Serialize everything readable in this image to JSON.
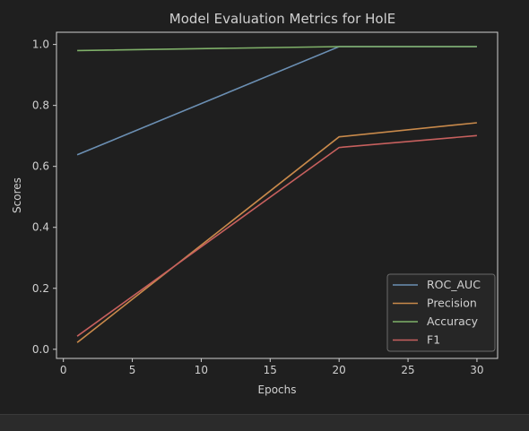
{
  "colors": {
    "background": "#1f1f1f",
    "axes": "#cfcfcf",
    "text": "#d0d0d0"
  },
  "chart_data": {
    "type": "line",
    "title": "Model Evaluation Metrics for HolE",
    "xlabel": "Epochs",
    "ylabel": "Scores",
    "x": [
      1,
      20,
      30
    ],
    "xlim": [
      -0.5,
      31.5
    ],
    "ylim": [
      -0.03,
      1.04
    ],
    "xticks": [
      0,
      5,
      10,
      15,
      20,
      25,
      30
    ],
    "xtick_labels": [
      "0",
      "5",
      "10",
      "15",
      "20",
      "25",
      "30"
    ],
    "yticks": [
      0.0,
      0.2,
      0.4,
      0.6,
      0.8,
      1.0
    ],
    "ytick_labels": [
      "0.0",
      "0.2",
      "0.4",
      "0.6",
      "0.8",
      "1.0"
    ],
    "grid": false,
    "legend_position": "lower-right",
    "series": [
      {
        "name": "ROC_AUC",
        "color": "#6b8fb3",
        "values": [
          0.638,
          0.993,
          0.993
        ]
      },
      {
        "name": "Precision",
        "color": "#c98a4b",
        "values": [
          0.022,
          0.697,
          0.743
        ]
      },
      {
        "name": "Accuracy",
        "color": "#7fb069",
        "values": [
          0.98,
          0.993,
          0.993
        ]
      },
      {
        "name": "F1",
        "color": "#c7605e",
        "values": [
          0.043,
          0.662,
          0.701
        ]
      }
    ]
  }
}
